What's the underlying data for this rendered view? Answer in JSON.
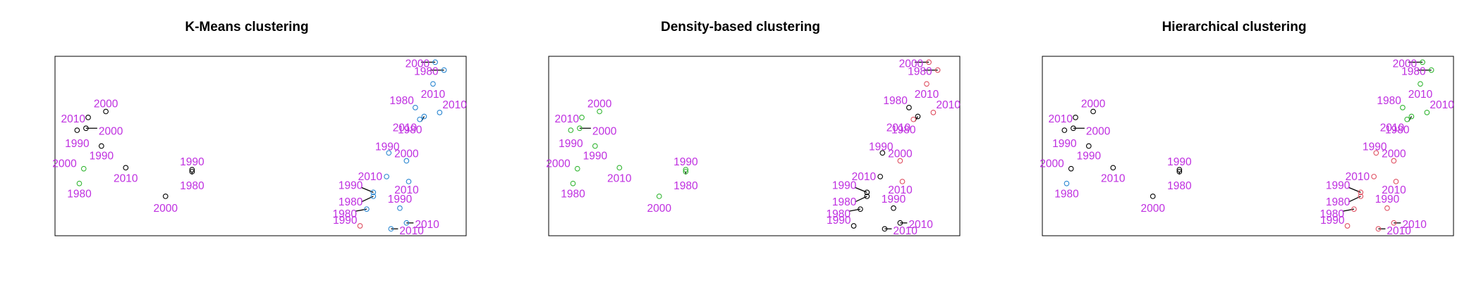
{
  "colors": {
    "label": "#bf2fe0",
    "cluster_black": "#000000",
    "cluster_green": "#35b735",
    "cluster_blue": "#2b87d1",
    "cluster_red": "#df4f61",
    "frame": "#000000"
  },
  "chart_data": [
    {
      "type": "scatter",
      "title": "K-Means clustering",
      "xlabel": "",
      "ylabel": "",
      "grid": false,
      "axes_shown": false,
      "points": [
        {
          "x": 0.77,
          "y": 0.36,
          "label": "2000",
          "cluster": "blue"
        },
        {
          "x": 0.81,
          "y": 0.28,
          "label": "1980",
          "cluster": "blue"
        },
        {
          "x": 0.76,
          "y": 0.14,
          "label": "2010",
          "cluster": "blue"
        },
        {
          "x": 0.68,
          "y": -0.1,
          "label": "1980",
          "cluster": "blue"
        },
        {
          "x": 0.79,
          "y": -0.15,
          "label": "2010",
          "cluster": "blue"
        },
        {
          "x": 0.72,
          "y": -0.19,
          "label": "1980",
          "cluster": "blue"
        },
        {
          "x": 0.7,
          "y": -0.22,
          "label": "2010",
          "cluster": "blue"
        },
        {
          "x": 0.56,
          "y": -0.56,
          "label": "1990",
          "cluster": "blue"
        },
        {
          "x": 0.64,
          "y": -0.64,
          "label": "2000",
          "cluster": "blue"
        },
        {
          "x": 0.55,
          "y": -0.8,
          "label": "2010",
          "cluster": "blue"
        },
        {
          "x": 0.65,
          "y": -0.85,
          "label": "2010",
          "cluster": "blue"
        },
        {
          "x": 0.49,
          "y": -0.96,
          "label": "1990",
          "cluster": "blue"
        },
        {
          "x": 0.49,
          "y": -1.0,
          "label": "1980",
          "cluster": "blue"
        },
        {
          "x": 0.46,
          "y": -1.13,
          "label": "1980",
          "cluster": "blue"
        },
        {
          "x": 0.61,
          "y": -1.12,
          "label": "1990",
          "cluster": "blue"
        },
        {
          "x": 0.64,
          "y": -1.27,
          "label": "2010",
          "cluster": "blue"
        },
        {
          "x": 0.57,
          "y": -1.33,
          "label": "2010",
          "cluster": "blue"
        },
        {
          "x": 0.43,
          "y": -1.3,
          "label": "1990",
          "cluster": "red"
        },
        {
          "x": -0.72,
          "y": -0.14,
          "label": "2000",
          "cluster": "black"
        },
        {
          "x": -0.8,
          "y": -0.2,
          "label": "2010",
          "cluster": "black"
        },
        {
          "x": -0.81,
          "y": -0.31,
          "label": "2000",
          "cluster": "black"
        },
        {
          "x": -0.85,
          "y": -0.33,
          "label": "1990",
          "cluster": "black"
        },
        {
          "x": -0.74,
          "y": -0.49,
          "label": "1990",
          "cluster": "black"
        },
        {
          "x": -0.63,
          "y": -0.71,
          "label": "2010",
          "cluster": "black"
        },
        {
          "x": -0.33,
          "y": -0.73,
          "label": "1990",
          "cluster": "black"
        },
        {
          "x": -0.33,
          "y": -0.75,
          "label": "1980",
          "cluster": "black"
        },
        {
          "x": -0.45,
          "y": -1.0,
          "label": "2000",
          "cluster": "black"
        },
        {
          "x": -0.82,
          "y": -0.72,
          "label": "2000",
          "cluster": "green"
        },
        {
          "x": -0.84,
          "y": -0.87,
          "label": "1980",
          "cluster": "green"
        }
      ]
    },
    {
      "type": "scatter",
      "title": "Density-based clustering",
      "xlabel": "",
      "ylabel": "",
      "grid": false,
      "axes_shown": false,
      "points": [
        {
          "x": 0.77,
          "y": 0.36,
          "label": "2000",
          "cluster": "red"
        },
        {
          "x": 0.81,
          "y": 0.28,
          "label": "1980",
          "cluster": "red"
        },
        {
          "x": 0.76,
          "y": 0.14,
          "label": "2010",
          "cluster": "red"
        },
        {
          "x": 0.68,
          "y": -0.1,
          "label": "1980",
          "cluster": "black"
        },
        {
          "x": 0.79,
          "y": -0.15,
          "label": "2010",
          "cluster": "red"
        },
        {
          "x": 0.72,
          "y": -0.19,
          "label": "1980",
          "cluster": "black"
        },
        {
          "x": 0.7,
          "y": -0.22,
          "label": "2010",
          "cluster": "red"
        },
        {
          "x": 0.56,
          "y": -0.56,
          "label": "1990",
          "cluster": "black"
        },
        {
          "x": 0.64,
          "y": -0.64,
          "label": "2000",
          "cluster": "red"
        },
        {
          "x": 0.55,
          "y": -0.8,
          "label": "2010",
          "cluster": "black"
        },
        {
          "x": 0.65,
          "y": -0.85,
          "label": "2010",
          "cluster": "red"
        },
        {
          "x": 0.49,
          "y": -0.96,
          "label": "1990",
          "cluster": "black"
        },
        {
          "x": 0.49,
          "y": -1.0,
          "label": "1980",
          "cluster": "black"
        },
        {
          "x": 0.46,
          "y": -1.13,
          "label": "1980",
          "cluster": "black"
        },
        {
          "x": 0.61,
          "y": -1.12,
          "label": "1990",
          "cluster": "black"
        },
        {
          "x": 0.64,
          "y": -1.27,
          "label": "2010",
          "cluster": "black"
        },
        {
          "x": 0.57,
          "y": -1.33,
          "label": "2010",
          "cluster": "black"
        },
        {
          "x": 0.43,
          "y": -1.3,
          "label": "1990",
          "cluster": "black"
        },
        {
          "x": -0.72,
          "y": -0.14,
          "label": "2000",
          "cluster": "green"
        },
        {
          "x": -0.8,
          "y": -0.2,
          "label": "2010",
          "cluster": "green"
        },
        {
          "x": -0.81,
          "y": -0.31,
          "label": "2000",
          "cluster": "green"
        },
        {
          "x": -0.85,
          "y": -0.33,
          "label": "1990",
          "cluster": "green"
        },
        {
          "x": -0.74,
          "y": -0.49,
          "label": "1990",
          "cluster": "green"
        },
        {
          "x": -0.63,
          "y": -0.71,
          "label": "2010",
          "cluster": "green"
        },
        {
          "x": -0.33,
          "y": -0.73,
          "label": "1990",
          "cluster": "green"
        },
        {
          "x": -0.33,
          "y": -0.75,
          "label": "1980",
          "cluster": "green"
        },
        {
          "x": -0.45,
          "y": -1.0,
          "label": "2000",
          "cluster": "green"
        },
        {
          "x": -0.82,
          "y": -0.72,
          "label": "2000",
          "cluster": "green"
        },
        {
          "x": -0.84,
          "y": -0.87,
          "label": "1980",
          "cluster": "green"
        }
      ]
    },
    {
      "type": "scatter",
      "title": "Hierarchical clustering",
      "xlabel": "",
      "ylabel": "",
      "grid": false,
      "axes_shown": false,
      "points": [
        {
          "x": 0.77,
          "y": 0.36,
          "label": "2000",
          "cluster": "green"
        },
        {
          "x": 0.81,
          "y": 0.28,
          "label": "1980",
          "cluster": "green"
        },
        {
          "x": 0.76,
          "y": 0.14,
          "label": "2010",
          "cluster": "green"
        },
        {
          "x": 0.68,
          "y": -0.1,
          "label": "1980",
          "cluster": "green"
        },
        {
          "x": 0.79,
          "y": -0.15,
          "label": "2010",
          "cluster": "green"
        },
        {
          "x": 0.72,
          "y": -0.19,
          "label": "1980",
          "cluster": "green"
        },
        {
          "x": 0.7,
          "y": -0.22,
          "label": "2010",
          "cluster": "green"
        },
        {
          "x": 0.56,
          "y": -0.56,
          "label": "1990",
          "cluster": "red"
        },
        {
          "x": 0.64,
          "y": -0.64,
          "label": "2000",
          "cluster": "red"
        },
        {
          "x": 0.55,
          "y": -0.8,
          "label": "2010",
          "cluster": "red"
        },
        {
          "x": 0.65,
          "y": -0.85,
          "label": "2010",
          "cluster": "red"
        },
        {
          "x": 0.49,
          "y": -0.96,
          "label": "1990",
          "cluster": "red"
        },
        {
          "x": 0.49,
          "y": -1.0,
          "label": "1980",
          "cluster": "red"
        },
        {
          "x": 0.46,
          "y": -1.13,
          "label": "1980",
          "cluster": "red"
        },
        {
          "x": 0.61,
          "y": -1.12,
          "label": "1990",
          "cluster": "red"
        },
        {
          "x": 0.64,
          "y": -1.27,
          "label": "2010",
          "cluster": "red"
        },
        {
          "x": 0.57,
          "y": -1.33,
          "label": "2010",
          "cluster": "red"
        },
        {
          "x": 0.43,
          "y": -1.3,
          "label": "1990",
          "cluster": "red"
        },
        {
          "x": -0.72,
          "y": -0.14,
          "label": "2000",
          "cluster": "black"
        },
        {
          "x": -0.8,
          "y": -0.2,
          "label": "2010",
          "cluster": "black"
        },
        {
          "x": -0.81,
          "y": -0.31,
          "label": "2000",
          "cluster": "black"
        },
        {
          "x": -0.85,
          "y": -0.33,
          "label": "1990",
          "cluster": "black"
        },
        {
          "x": -0.74,
          "y": -0.49,
          "label": "1990",
          "cluster": "black"
        },
        {
          "x": -0.63,
          "y": -0.71,
          "label": "2010",
          "cluster": "black"
        },
        {
          "x": -0.33,
          "y": -0.73,
          "label": "1990",
          "cluster": "black"
        },
        {
          "x": -0.33,
          "y": -0.75,
          "label": "1980",
          "cluster": "black"
        },
        {
          "x": -0.45,
          "y": -1.0,
          "label": "2000",
          "cluster": "black"
        },
        {
          "x": -0.82,
          "y": -0.72,
          "label": "2000",
          "cluster": "black"
        },
        {
          "x": -0.84,
          "y": -0.87,
          "label": "1980",
          "cluster": "blue"
        }
      ]
    }
  ]
}
